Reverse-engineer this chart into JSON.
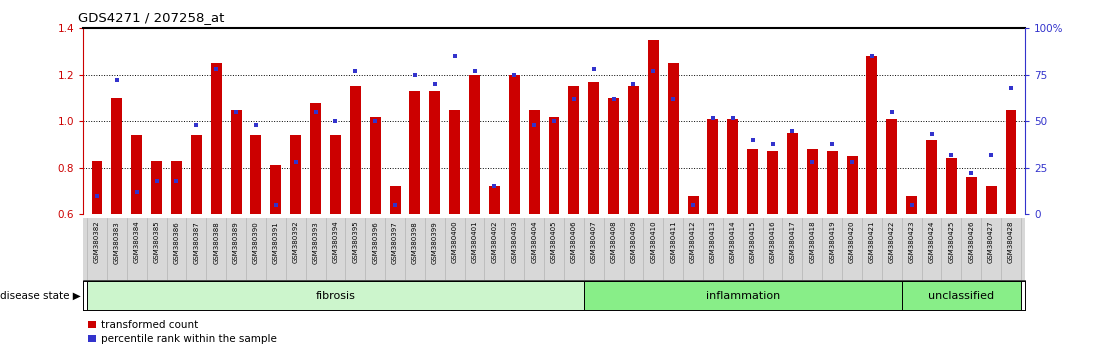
{
  "title": "GDS4271 / 207258_at",
  "samples": [
    "GSM380382",
    "GSM380383",
    "GSM380384",
    "GSM380385",
    "GSM380386",
    "GSM380387",
    "GSM380388",
    "GSM380389",
    "GSM380390",
    "GSM380391",
    "GSM380392",
    "GSM380393",
    "GSM380394",
    "GSM380395",
    "GSM380396",
    "GSM380397",
    "GSM380398",
    "GSM380399",
    "GSM380400",
    "GSM380401",
    "GSM380402",
    "GSM380403",
    "GSM380404",
    "GSM380405",
    "GSM380406",
    "GSM380407",
    "GSM380408",
    "GSM380409",
    "GSM380410",
    "GSM380411",
    "GSM380412",
    "GSM380413",
    "GSM380414",
    "GSM380415",
    "GSM380416",
    "GSM380417",
    "GSM380418",
    "GSM380419",
    "GSM380420",
    "GSM380421",
    "GSM380422",
    "GSM380423",
    "GSM380424",
    "GSM380425",
    "GSM380426",
    "GSM380427",
    "GSM380428"
  ],
  "red_values": [
    0.83,
    1.1,
    0.94,
    0.83,
    0.83,
    0.94,
    1.25,
    1.05,
    0.94,
    0.81,
    0.94,
    1.08,
    0.94,
    1.15,
    1.02,
    0.72,
    1.13,
    1.13,
    1.05,
    1.2,
    0.72,
    1.2,
    1.05,
    1.02,
    1.15,
    1.17,
    1.1,
    1.15,
    1.35,
    1.25,
    0.68,
    1.01,
    1.01,
    0.88,
    0.87,
    0.95,
    0.88,
    0.87,
    0.85,
    1.28,
    1.01,
    0.68,
    0.92,
    0.84,
    0.76,
    0.72,
    1.05
  ],
  "blue_pct": [
    10,
    72,
    12,
    18,
    18,
    48,
    78,
    55,
    48,
    5,
    28,
    55,
    50,
    77,
    50,
    5,
    75,
    70,
    85,
    77,
    15,
    75,
    48,
    50,
    62,
    78,
    62,
    70,
    77,
    62,
    5,
    52,
    52,
    40,
    38,
    45,
    28,
    38,
    28,
    85,
    55,
    5,
    43,
    32,
    22,
    32,
    68
  ],
  "ylim_left": [
    0.6,
    1.4
  ],
  "ylim_right": [
    0,
    100
  ],
  "yticks_left": [
    0.6,
    0.8,
    1.0,
    1.2,
    1.4
  ],
  "yticks_right": [
    0,
    25,
    50,
    75,
    100
  ],
  "bar_color": "#cc0000",
  "dot_color": "#3333cc",
  "fibrosis_color": "#ccf5cc",
  "inflammation_color": "#88ee88",
  "unclassified_color": "#88ee88",
  "group_defs": [
    {
      "label": "fibrosis",
      "start": 0,
      "end": 25
    },
    {
      "label": "inflammation",
      "start": 25,
      "end": 41
    },
    {
      "label": "unclassified",
      "start": 41,
      "end": 47
    }
  ],
  "legend_items": [
    "transformed count",
    "percentile rank within the sample"
  ],
  "hgrid_lines": [
    0.8,
    1.0,
    1.2
  ]
}
